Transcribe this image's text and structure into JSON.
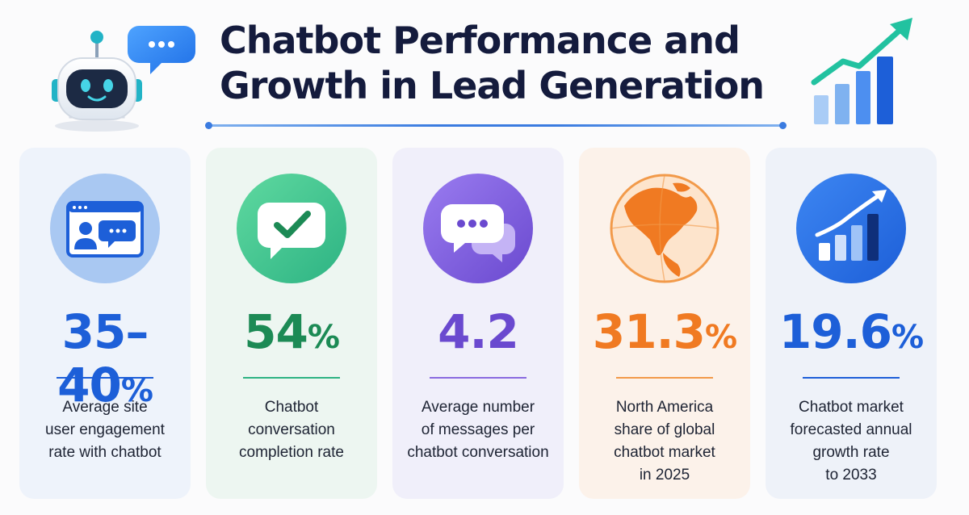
{
  "title": {
    "line1": "Chatbot Performance and",
    "line2": "Growth in Lead Generation"
  },
  "colors": {
    "title": "#141b3d",
    "blue": "#1d5fd8",
    "green": "#1c8a55",
    "purple": "#6a49cf",
    "orange": "#f07a22",
    "blue_dark": "#1d5fd8"
  },
  "cards": [
    {
      "icon": "browser-user-chat-icon",
      "stat": "35–40",
      "stat_suffix": "%",
      "description": [
        "Average site",
        "user engagement",
        "rate with chatbot"
      ]
    },
    {
      "icon": "check-speech-bubble-icon",
      "stat": "54",
      "stat_suffix": "%",
      "description": [
        "Chatbot",
        "conversation",
        "completion rate"
      ]
    },
    {
      "icon": "message-bubbles-icon",
      "stat": "4.2",
      "stat_suffix": "",
      "description": [
        "Average number",
        "of messages per",
        "chatbot conversation"
      ]
    },
    {
      "icon": "north-america-globe-icon",
      "stat": "31.3",
      "stat_suffix": "%",
      "description": [
        "North America",
        "share of global",
        "chatbot market",
        "in 2025"
      ]
    },
    {
      "icon": "bar-chart-growth-icon",
      "stat": "19.6",
      "stat_suffix": "%",
      "description": [
        "Chatbot market",
        "forecasted annual",
        "growth rate",
        "to 2033"
      ]
    }
  ]
}
